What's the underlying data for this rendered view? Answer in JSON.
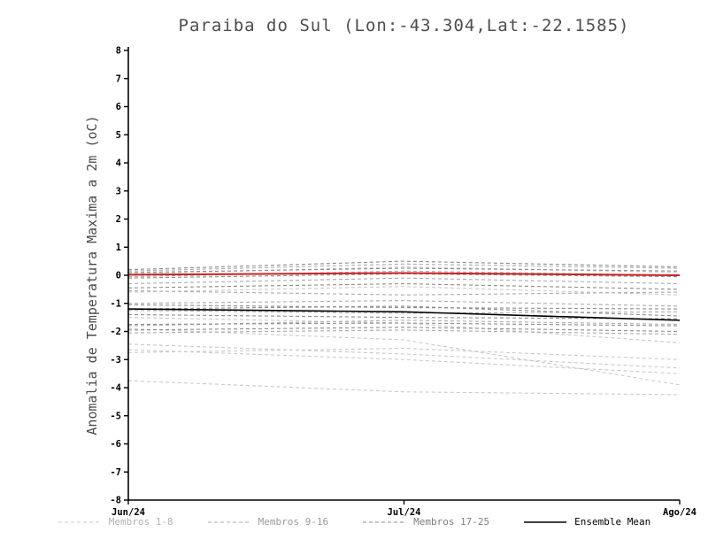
{
  "chart_data": {
    "type": "line",
    "title": "Paraiba do Sul (Lon:-43.304,Lat:-22.1585)",
    "ylabel": "Anomalia de Temperatura Maxima a 2m (oC)",
    "x": [
      "Jun/24",
      "Jul/24",
      "Ago/24"
    ],
    "ylim": [
      -8,
      8
    ],
    "ytick_step": 1,
    "grid": false,
    "axis_color": "#000000",
    "series_groups": [
      {
        "name": "Membros 1-8",
        "color": "#c9c9c9",
        "dashed": true,
        "members": [
          [
            -2.45,
            -2.8,
            -3.3
          ],
          [
            -2.65,
            -3.0,
            -3.5
          ],
          [
            -3.75,
            -4.15,
            -4.25
          ],
          [
            -1.9,
            -2.3,
            -3.9
          ],
          [
            -2.75,
            -2.6,
            -3.0
          ],
          [
            -1.5,
            -1.7,
            -2.4
          ],
          [
            -0.6,
            -0.4,
            -0.7
          ],
          [
            0.05,
            0.3,
            0.1
          ]
        ]
      },
      {
        "name": "Membros 9-16",
        "color": "#ababab",
        "dashed": true,
        "members": [
          [
            0.15,
            0.4,
            0.25
          ],
          [
            -0.05,
            0.15,
            0.0
          ],
          [
            -0.3,
            -0.1,
            -0.3
          ],
          [
            -0.55,
            -0.7,
            -0.6
          ],
          [
            -1.0,
            -0.9,
            -1.1
          ],
          [
            -1.25,
            -1.35,
            -1.3
          ],
          [
            -1.8,
            -1.6,
            -1.75
          ],
          [
            -2.05,
            -1.95,
            -2.1
          ]
        ]
      },
      {
        "name": "Membros 17-25",
        "color": "#8c8c8c",
        "dashed": true,
        "members": [
          [
            0.2,
            0.5,
            0.3
          ],
          [
            0.1,
            0.25,
            0.15
          ],
          [
            -0.1,
            0.05,
            -0.05
          ],
          [
            -0.45,
            -0.3,
            -0.5
          ],
          [
            -1.05,
            -1.15,
            -1.2
          ],
          [
            -1.2,
            -1.1,
            -1.45
          ],
          [
            -1.4,
            -1.5,
            -1.55
          ],
          [
            -1.75,
            -1.7,
            -1.8
          ],
          [
            -1.95,
            -1.85,
            -2.0
          ]
        ]
      }
    ],
    "ensemble_mean": {
      "name": "Ensemble Mean",
      "color": "#000000",
      "dashed": false,
      "values": [
        -1.2,
        -1.3,
        -1.6
      ]
    },
    "reference_line": {
      "name": "zero-reference",
      "color": "#cc2222",
      "dashed": false,
      "values": [
        0.02,
        0.08,
        0.0
      ]
    },
    "legend": [
      {
        "label": "Membros 1-8",
        "color": "#c9c9c9",
        "dashed": true,
        "text_color": "#b2b2b2"
      },
      {
        "label": "Membros 9-16",
        "color": "#ababab",
        "dashed": true,
        "text_color": "#9a9a9a"
      },
      {
        "label": "Membros 17-25",
        "color": "#8c8c8c",
        "dashed": true,
        "text_color": "#7d7d7d"
      },
      {
        "label": "Ensemble Mean",
        "color": "#000000",
        "dashed": false,
        "text_color": "#000000"
      }
    ]
  }
}
